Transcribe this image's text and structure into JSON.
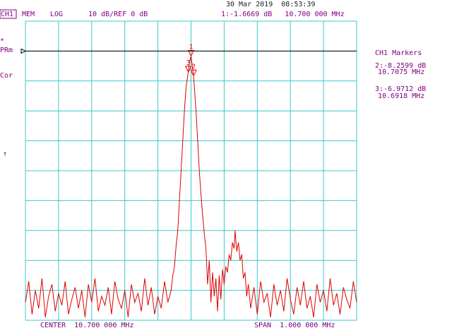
{
  "chart_data": {
    "type": "line",
    "header": {
      "channel": "CH1",
      "mode": "MEM",
      "format": "LOG",
      "scale": "10 dB/REF 0 dB",
      "datetime": "30 Mar 2019  08:53:39",
      "marker_readout": "1:-1.6669 dB   10.700 000 MHz"
    },
    "side_labels": {
      "star": "*",
      "prm": "PRm",
      "cor": "Cor",
      "arrow": "↑"
    },
    "marker_panel": {
      "title": "CH1 Markers",
      "lines": [
        "2:-8.2599 dB",
        "10.7075 MHz",
        "3:-6.9712 dB",
        "10.6918 MHz"
      ]
    },
    "footer": {
      "center": "CENTER  10.700 000 MHz",
      "span": "SPAN  1.000 000 MHz"
    },
    "xlim": [
      10.2,
      11.2
    ],
    "ylim": [
      -90,
      10
    ],
    "xticks": [
      10.2,
      10.3,
      10.4,
      10.5,
      10.6,
      10.7,
      10.8,
      10.9,
      11.0,
      11.1,
      11.2
    ],
    "yticks": [
      -90,
      -80,
      -70,
      -60,
      -50,
      -40,
      -30,
      -20,
      -10,
      0,
      10
    ],
    "grid": true,
    "grid_color": "#3cc8c8",
    "reference_line": 0,
    "markers": [
      {
        "label": "1",
        "x": 10.7,
        "y": -1.6669
      },
      {
        "label": "2",
        "x": 10.7075,
        "y": -8.2599
      },
      {
        "label": "3",
        "x": 10.6918,
        "y": -6.9712
      }
    ],
    "x": [
      10.2,
      10.21,
      10.22,
      10.23,
      10.24,
      10.25,
      10.26,
      10.27,
      10.28,
      10.29,
      10.3,
      10.31,
      10.32,
      10.33,
      10.34,
      10.35,
      10.36,
      10.37,
      10.38,
      10.39,
      10.4,
      10.41,
      10.42,
      10.43,
      10.44,
      10.45,
      10.46,
      10.47,
      10.48,
      10.49,
      10.5,
      10.51,
      10.52,
      10.53,
      10.54,
      10.55,
      10.56,
      10.57,
      10.58,
      10.59,
      10.6,
      10.61,
      10.62,
      10.63,
      10.64,
      10.645,
      10.65,
      10.655,
      10.66,
      10.665,
      10.67,
      10.675,
      10.68,
      10.685,
      10.6918,
      10.695,
      10.7,
      10.7075,
      10.71,
      10.715,
      10.72,
      10.725,
      10.73,
      10.735,
      10.74,
      10.745,
      10.75,
      10.755,
      10.76,
      10.765,
      10.77,
      10.775,
      10.78,
      10.785,
      10.79,
      10.795,
      10.8,
      10.805,
      10.81,
      10.815,
      10.82,
      10.825,
      10.83,
      10.833,
      10.838,
      10.843,
      10.848,
      10.853,
      10.858,
      10.863,
      10.868,
      10.873,
      10.88,
      10.89,
      10.9,
      10.91,
      10.92,
      10.93,
      10.94,
      10.95,
      10.96,
      10.97,
      10.98,
      10.99,
      11.0,
      11.01,
      11.02,
      11.03,
      11.04,
      11.05,
      11.06,
      11.07,
      11.08,
      11.09,
      11.1,
      11.11,
      11.12,
      11.13,
      11.14,
      11.15,
      11.16,
      11.17,
      11.18,
      11.19,
      11.2
    ],
    "series": [
      {
        "color": "#e00000",
        "values": [
          -84,
          -77,
          -88,
          -80,
          -86,
          -76,
          -89,
          -82,
          -78,
          -87,
          -81,
          -85,
          -77,
          -88,
          -83,
          -79,
          -86,
          -80,
          -89,
          -78,
          -84,
          -76,
          -87,
          -82,
          -85,
          -79,
          -88,
          -77,
          -83,
          -86,
          -80,
          -89,
          -78,
          -84,
          -81,
          -87,
          -76,
          -85,
          -79,
          -88,
          -82,
          -86,
          -77,
          -84,
          -80,
          -75,
          -72,
          -65,
          -60,
          -50,
          -40,
          -30,
          -20,
          -12,
          -6.9712,
          -4,
          -1.6669,
          -8.2599,
          -12,
          -20,
          -30,
          -40,
          -48,
          -55,
          -61,
          -66,
          -78,
          -70,
          -84,
          -74,
          -82,
          -76,
          -87,
          -75,
          -83,
          -73,
          -78,
          -72,
          -74,
          -68,
          -70,
          -64,
          -66,
          -60,
          -67,
          -64,
          -70,
          -68,
          -76,
          -74,
          -82,
          -78,
          -86,
          -79,
          -88,
          -77,
          -84,
          -81,
          -89,
          -78,
          -85,
          -80,
          -87,
          -76,
          -83,
          -88,
          -79,
          -85,
          -77,
          -86,
          -82,
          -89,
          -78,
          -84,
          -80,
          -87,
          -76,
          -85,
          -81,
          -88,
          -79,
          -83,
          -86,
          -77,
          -84
        ]
      }
    ]
  }
}
